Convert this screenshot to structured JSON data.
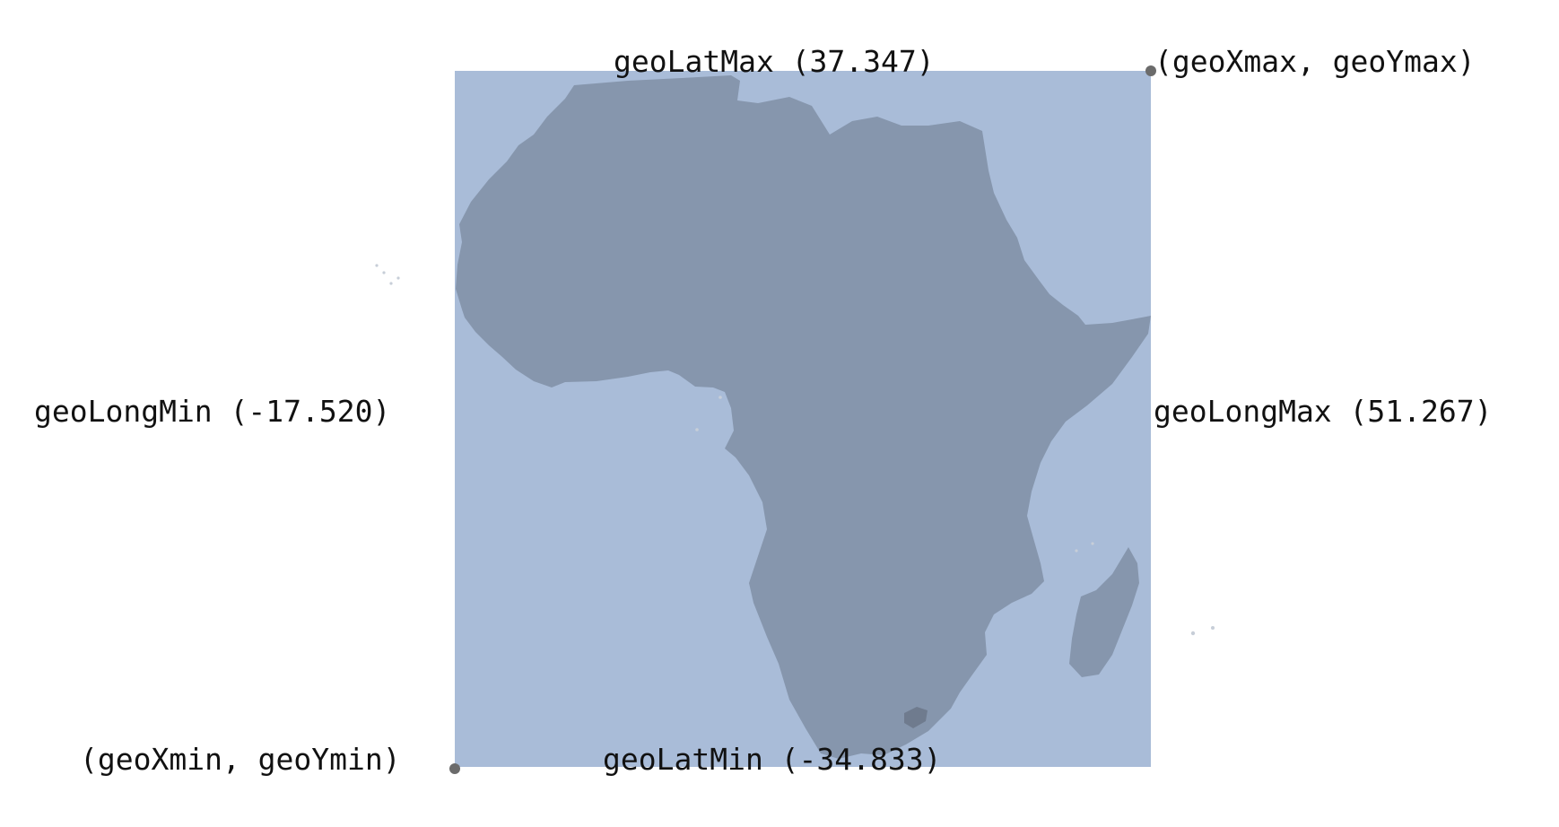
{
  "labels": {
    "lat_max": "geoLatMax (37.347)",
    "lat_min": "geoLatMin (-34.833)",
    "long_min": "geoLongMin (-17.520)",
    "long_max": "geoLongMax (51.267)",
    "corner_max": "(geoXmax, geoYmax)",
    "corner_min": "(geoXmin, geoYmin)"
  },
  "bounds": {
    "lat_max": 37.347,
    "lat_min": -34.833,
    "long_min": -17.52,
    "long_max": 51.267
  },
  "colors": {
    "bbox_fill": "#a9bcd8",
    "land_fill": "#8696ad",
    "lesotho_fill": "#6f7b8e",
    "corner_marker": "#6b6b6b",
    "text": "#111111"
  }
}
